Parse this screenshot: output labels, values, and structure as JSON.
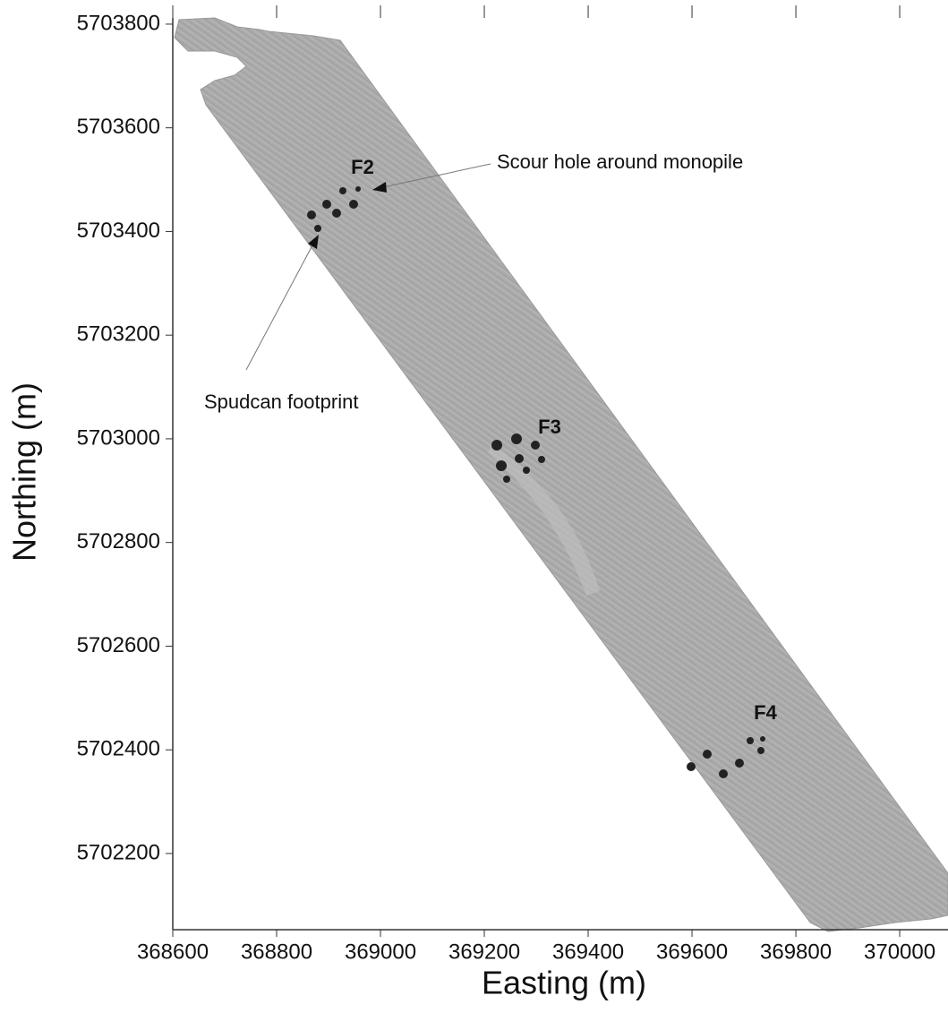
{
  "chart_data": {
    "type": "map",
    "xlabel": "Easting (m)",
    "ylabel": "Northing (m)",
    "xlim": [
      368600,
      370093
    ],
    "ylim": [
      5702053,
      5703812
    ],
    "xticks": [
      368600,
      368800,
      369000,
      369200,
      369400,
      369600,
      369800,
      370000
    ],
    "yticks": [
      5702200,
      5702400,
      5702600,
      5702800,
      5703000,
      5703200,
      5703400,
      5703600,
      5703800
    ],
    "annotations": {
      "f2": "F2",
      "f3": "F3",
      "f4": "F4",
      "scour": "Scour hole around monopile",
      "spudcan": "Spudcan footprint"
    }
  }
}
